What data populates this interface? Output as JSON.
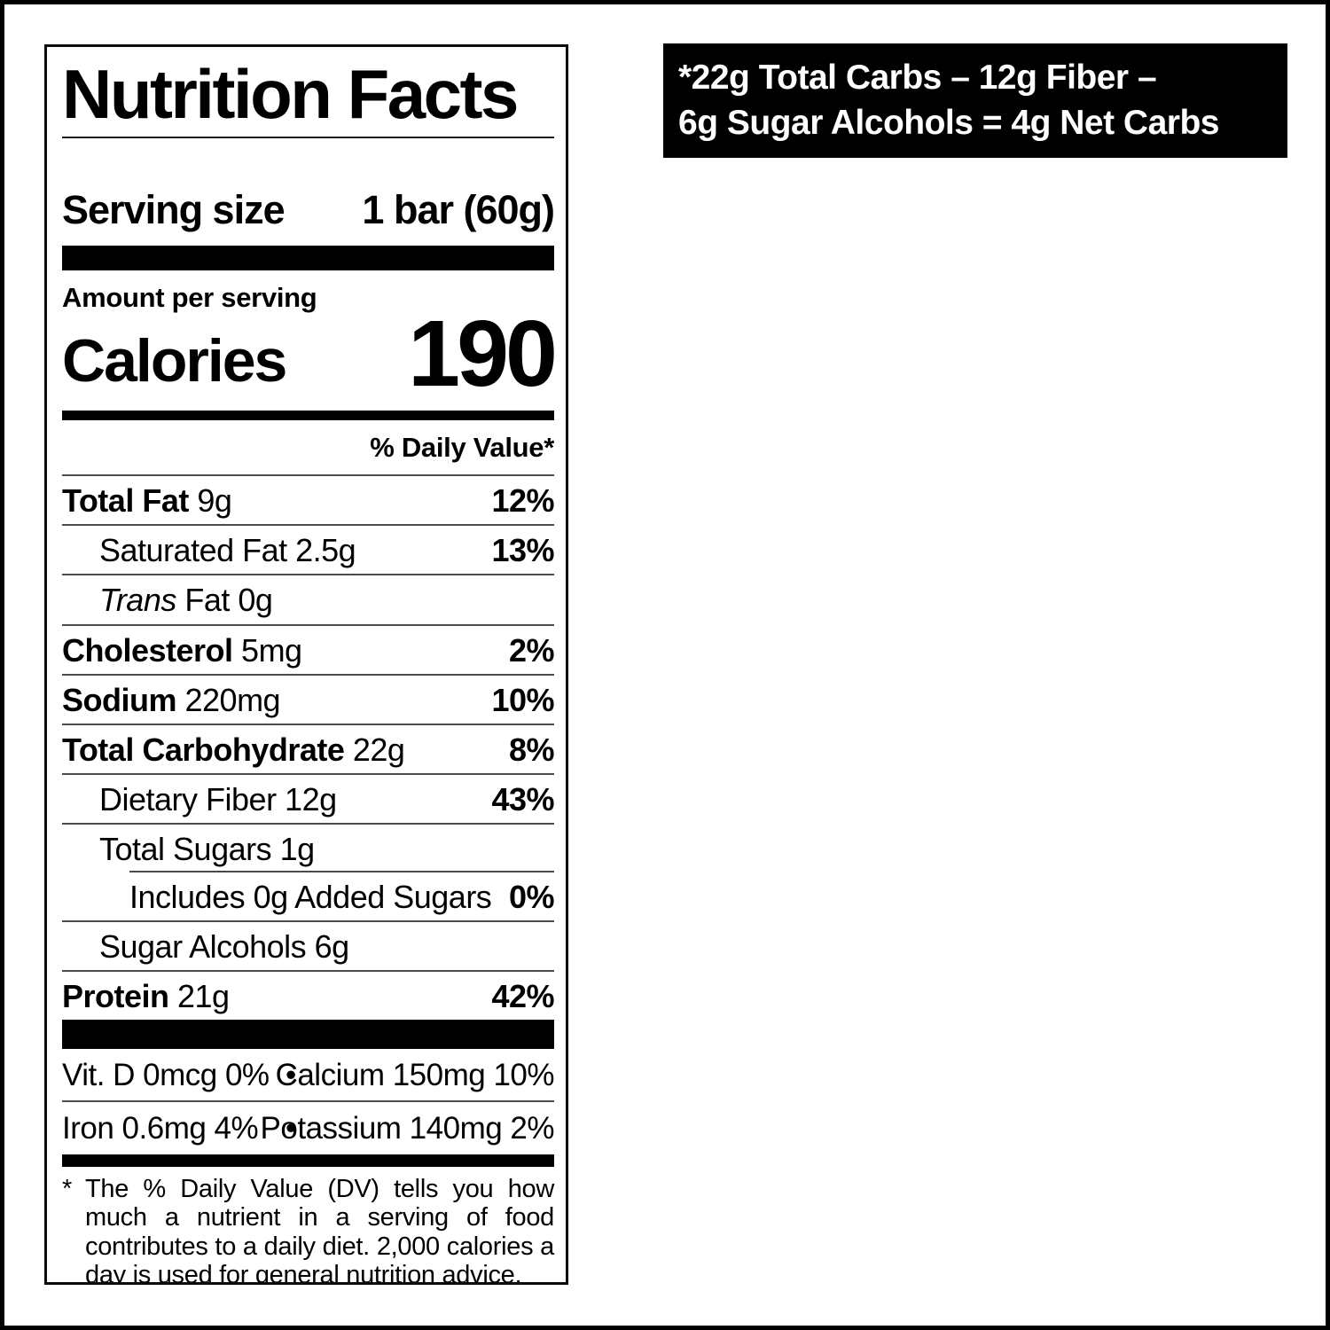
{
  "page": {
    "background": "#ffffff",
    "frame_color": "#000000"
  },
  "banner": {
    "bg_color": "#000000",
    "text_color": "#ffffff",
    "line1": "*22g Total Carbs – 12g Fiber –",
    "line2": "6g Sugar Alcohols = 4g Net Carbs"
  },
  "label": {
    "title": "Nutrition Facts",
    "serving": {
      "label": "Serving size",
      "value": "1 bar (60g)"
    },
    "amount_per_serving": "Amount per serving",
    "calories": {
      "label": "Calories",
      "value": "190"
    },
    "daily_value_header": "% Daily Value*",
    "rows": [
      {
        "id": "total-fat",
        "indent": 0,
        "parts": [
          {
            "t": "Total Fat",
            "b": true
          },
          {
            "t": " 9g"
          }
        ],
        "pct": "12%"
      },
      {
        "id": "saturated-fat",
        "indent": 1,
        "parts": [
          {
            "t": "Saturated Fat 2.5g"
          }
        ],
        "pct": "13%"
      },
      {
        "id": "trans-fat",
        "indent": 1,
        "parts": [
          {
            "t": "Trans",
            "i": true
          },
          {
            "t": " Fat 0g"
          }
        ],
        "pct": ""
      },
      {
        "id": "cholesterol",
        "indent": 0,
        "parts": [
          {
            "t": "Cholesterol",
            "b": true
          },
          {
            "t": " 5mg"
          }
        ],
        "pct": "2%"
      },
      {
        "id": "sodium",
        "indent": 0,
        "parts": [
          {
            "t": "Sodium",
            "b": true
          },
          {
            "t": " 220mg"
          }
        ],
        "pct": "10%"
      },
      {
        "id": "total-carbohydrate",
        "indent": 0,
        "parts": [
          {
            "t": "Total Carbohydrate",
            "b": true
          },
          {
            "t": " 22g"
          }
        ],
        "pct": "8%"
      },
      {
        "id": "dietary-fiber",
        "indent": 1,
        "parts": [
          {
            "t": "Dietary Fiber 12g"
          }
        ],
        "pct": "43%"
      },
      {
        "id": "total-sugars",
        "indent": 1,
        "parts": [
          {
            "t": "Total Sugars 1g"
          }
        ],
        "pct": ""
      },
      {
        "id": "added-sugars",
        "indent": 2,
        "parts": [
          {
            "t": "Includes 0g Added Sugars"
          }
        ],
        "pct": "0%",
        "rule": "partial"
      },
      {
        "id": "sugar-alcohols",
        "indent": 1,
        "parts": [
          {
            "t": "Sugar Alcohols 6g"
          }
        ],
        "pct": ""
      },
      {
        "id": "protein",
        "indent": 0,
        "parts": [
          {
            "t": "Protein",
            "b": true
          },
          {
            "t": " 21g"
          }
        ],
        "pct": "42%"
      }
    ],
    "micronutrients": [
      {
        "id": "vitd-calcium",
        "left": "Vit. D 0mcg 0%",
        "separator": "•",
        "right": "Calcium 150mg 10%"
      },
      {
        "id": "iron-potassium",
        "left": "Iron 0.6mg 4%",
        "separator": "•",
        "right": "Potassium 140mg 2%"
      }
    ],
    "footnote": {
      "marker": "*",
      "text": "The % Daily Value (DV) tells you how much a nutrient in a serving of food contributes to a daily diet. 2,000 calories a day is used for general nutrition advice."
    }
  }
}
